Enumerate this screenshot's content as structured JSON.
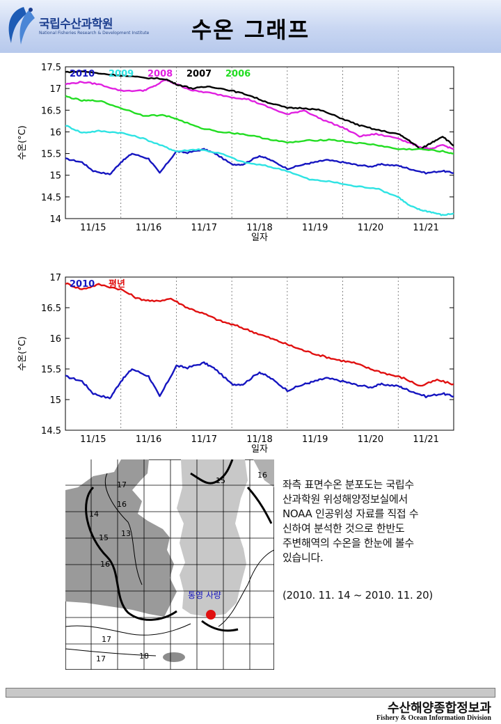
{
  "header": {
    "org_name": "국립수산과학원",
    "org_sub": "National Fisheries Research & Development Institute",
    "title": "수온 그래프"
  },
  "colors": {
    "c2010": "#1515c0",
    "c2009": "#2fe3e3",
    "c2008": "#e020e0",
    "c2007": "#000000",
    "c2006": "#22dd22",
    "normal": "#e01010"
  },
  "chart_data": [
    {
      "type": "line",
      "ylabel": "수온(°C)",
      "xlabel": "일자",
      "ylim": [
        14,
        17.5
      ],
      "yticks": [
        14,
        14.5,
        15,
        15.5,
        16,
        16.5,
        17,
        17.5
      ],
      "xticks": [
        "11/15",
        "11/16",
        "11/17",
        "11/18",
        "11/19",
        "11/20",
        "11/21"
      ],
      "grid": "vertical dotted",
      "legend": "top-left",
      "series": [
        {
          "name": "2010",
          "color": "#1515c0",
          "x": [
            0.0,
            0.3,
            0.5,
            0.8,
            1.0,
            1.2,
            1.5,
            1.7,
            2.0,
            2.2,
            2.5,
            2.7,
            3.0,
            3.2,
            3.5,
            3.7,
            4.0,
            4.3,
            4.5,
            4.7,
            5.0,
            5.2,
            5.5,
            5.7,
            6.0,
            6.2,
            6.5,
            6.8,
            7.0
          ],
          "y": [
            15.38,
            15.3,
            15.1,
            15.02,
            15.3,
            15.5,
            15.38,
            15.05,
            15.55,
            15.52,
            15.6,
            15.5,
            15.25,
            15.25,
            15.45,
            15.35,
            15.15,
            15.25,
            15.3,
            15.35,
            15.3,
            15.25,
            15.2,
            15.25,
            15.22,
            15.15,
            15.05,
            15.1,
            15.05
          ]
        },
        {
          "name": "2009",
          "color": "#2fe3e3",
          "x": [
            0.0,
            0.3,
            0.6,
            1.0,
            1.4,
            1.8,
            2.0,
            2.4,
            2.8,
            3.2,
            3.6,
            4.0,
            4.4,
            4.8,
            5.2,
            5.6,
            6.0,
            6.2,
            6.4,
            6.6,
            6.8,
            7.0
          ],
          "y": [
            16.15,
            15.98,
            16.02,
            15.98,
            15.85,
            15.65,
            15.55,
            15.6,
            15.5,
            15.3,
            15.22,
            15.1,
            14.9,
            14.85,
            14.75,
            14.7,
            14.5,
            14.3,
            14.2,
            14.15,
            14.08,
            14.12
          ]
        },
        {
          "name": "2008",
          "color": "#e020e0",
          "x": [
            0.0,
            0.3,
            0.6,
            1.0,
            1.4,
            1.6,
            1.8,
            2.0,
            2.3,
            2.6,
            3.0,
            3.3,
            3.6,
            4.0,
            4.3,
            4.6,
            5.0,
            5.3,
            5.6,
            6.0,
            6.2,
            6.4,
            6.6,
            6.8,
            7.0
          ],
          "y": [
            17.1,
            17.15,
            17.1,
            16.95,
            16.95,
            17.05,
            17.2,
            17.1,
            16.95,
            16.9,
            16.8,
            16.75,
            16.6,
            16.4,
            16.5,
            16.3,
            16.1,
            15.9,
            15.95,
            15.85,
            15.75,
            15.65,
            15.6,
            15.7,
            15.6
          ]
        },
        {
          "name": "2007",
          "color": "#000000",
          "x": [
            0.0,
            0.3,
            0.6,
            1.0,
            1.4,
            1.8,
            2.0,
            2.3,
            2.6,
            3.0,
            3.3,
            3.6,
            4.0,
            4.3,
            4.6,
            5.0,
            5.3,
            5.6,
            6.0,
            6.2,
            6.4,
            6.6,
            6.8,
            7.0
          ],
          "y": [
            17.38,
            17.4,
            17.35,
            17.3,
            17.25,
            17.22,
            17.1,
            17.0,
            17.05,
            16.95,
            16.85,
            16.7,
            16.55,
            16.55,
            16.5,
            16.3,
            16.15,
            16.05,
            15.95,
            15.8,
            15.6,
            15.75,
            15.9,
            15.68
          ]
        },
        {
          "name": "2006",
          "color": "#22dd22",
          "x": [
            0.0,
            0.3,
            0.6,
            1.0,
            1.4,
            1.8,
            2.0,
            2.4,
            2.8,
            3.2,
            3.6,
            4.0,
            4.4,
            4.8,
            5.2,
            5.6,
            6.0,
            6.4,
            6.8,
            7.0
          ],
          "y": [
            16.82,
            16.72,
            16.72,
            16.55,
            16.38,
            16.38,
            16.3,
            16.1,
            16.0,
            15.95,
            15.85,
            15.75,
            15.8,
            15.82,
            15.75,
            15.7,
            15.6,
            15.6,
            15.55,
            15.5
          ]
        }
      ]
    },
    {
      "type": "line",
      "ylabel": "수온(°C)",
      "xlabel": "일자",
      "ylim": [
        14.5,
        17
      ],
      "yticks": [
        14.5,
        15,
        15.5,
        16,
        16.5,
        17
      ],
      "xticks": [
        "11/15",
        "11/16",
        "11/17",
        "11/18",
        "11/19",
        "11/20",
        "11/21"
      ],
      "grid": "vertical dotted",
      "legend": "top-left",
      "series": [
        {
          "name": "2010",
          "color": "#1515c0",
          "x": [
            0.0,
            0.3,
            0.5,
            0.8,
            1.0,
            1.2,
            1.5,
            1.7,
            2.0,
            2.2,
            2.5,
            2.7,
            3.0,
            3.2,
            3.5,
            3.7,
            4.0,
            4.3,
            4.5,
            4.7,
            5.0,
            5.2,
            5.5,
            5.7,
            6.0,
            6.2,
            6.5,
            6.8,
            7.0
          ],
          "y": [
            15.38,
            15.3,
            15.1,
            15.02,
            15.3,
            15.5,
            15.38,
            15.05,
            15.55,
            15.52,
            15.6,
            15.5,
            15.25,
            15.25,
            15.45,
            15.35,
            15.15,
            15.25,
            15.3,
            15.35,
            15.3,
            15.25,
            15.2,
            15.25,
            15.22,
            15.15,
            15.05,
            15.1,
            15.05
          ]
        },
        {
          "name": "평년",
          "color": "#e01010",
          "x": [
            0.0,
            0.3,
            0.6,
            1.0,
            1.3,
            1.6,
            1.9,
            2.2,
            2.5,
            2.8,
            3.1,
            3.4,
            3.7,
            4.0,
            4.3,
            4.6,
            4.9,
            5.2,
            5.5,
            5.8,
            6.1,
            6.4,
            6.7,
            7.0
          ],
          "y": [
            16.9,
            16.8,
            16.88,
            16.8,
            16.65,
            16.6,
            16.65,
            16.5,
            16.4,
            16.28,
            16.2,
            16.1,
            16.0,
            15.9,
            15.8,
            15.72,
            15.65,
            15.6,
            15.5,
            15.42,
            15.35,
            15.22,
            15.32,
            15.25
          ]
        }
      ]
    }
  ],
  "map": {
    "contour_labels": [
      "17",
      "16",
      "14",
      "13",
      "15",
      "16",
      "15",
      "16",
      "17",
      "17",
      "18"
    ],
    "location_label": "통영 사량"
  },
  "description": {
    "lines": [
      "좌측 표면수온 분포도는 국립수",
      "산과학원 위성해양정보실에서",
      "NOAA 인공위성 자료를 직접 수",
      "신하여 분석한 것으로  한반도",
      "주변해역의 수온을 한눈에 볼수",
      "있습니다."
    ],
    "period": "(2010. 11. 14 ~ 2010. 11. 20)"
  },
  "footer": {
    "division_kr": "수산해양종합정보과",
    "division_en": "Fishery & Ocean Information Division"
  }
}
